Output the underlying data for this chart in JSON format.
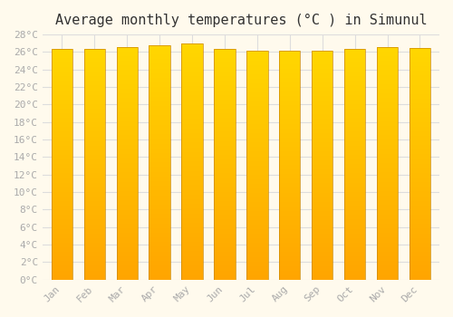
{
  "title": "Average monthly temperatures (°C ) in Simunul",
  "months": [
    "Jan",
    "Feb",
    "Mar",
    "Apr",
    "May",
    "Jun",
    "Jul",
    "Aug",
    "Sep",
    "Oct",
    "Nov",
    "Dec"
  ],
  "values": [
    26.4,
    26.4,
    26.6,
    26.8,
    27.0,
    26.4,
    26.1,
    26.2,
    26.2,
    26.4,
    26.6,
    26.5
  ],
  "ylim": [
    0,
    28
  ],
  "yticks": [
    0,
    2,
    4,
    6,
    8,
    10,
    12,
    14,
    16,
    18,
    20,
    22,
    24,
    26,
    28
  ],
  "bar_color_bottom": "#FFA500",
  "bar_color_top": "#FFD700",
  "background_color": "#FFFAED",
  "grid_color": "#DDDDDD",
  "title_fontsize": 11,
  "tick_fontsize": 8,
  "font_color": "#AAAAAA"
}
